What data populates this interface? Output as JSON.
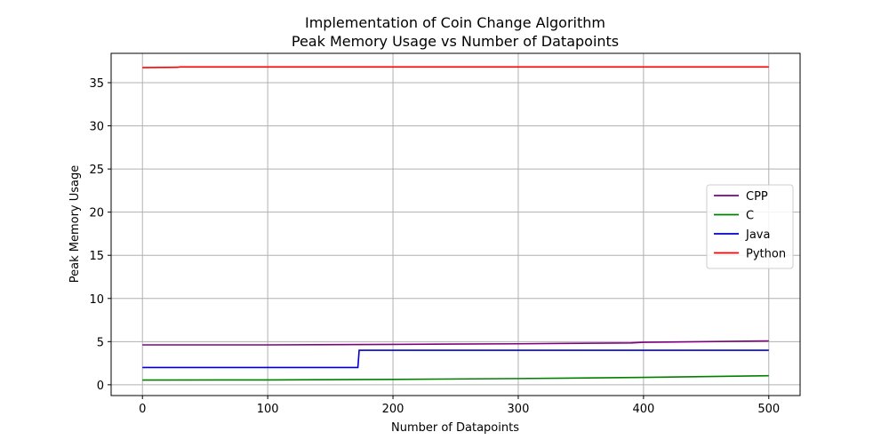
{
  "chart_data": {
    "type": "line",
    "title": "Implementation of Coin Change Algorithm",
    "subtitle": "Peak Memory Usage vs Number of Datapoints",
    "xlabel": "Number of Datapoints",
    "ylabel": "Peak Memory Usage",
    "xlim": [
      -25,
      525
    ],
    "ylim": [
      -1.25,
      38.4
    ],
    "xticks": [
      0,
      100,
      200,
      300,
      400,
      500
    ],
    "yticks": [
      0,
      5,
      10,
      15,
      20,
      25,
      30,
      35
    ],
    "grid": true,
    "legend_position": "center-right",
    "series": [
      {
        "name": "CPP",
        "color": "#800080",
        "points": [
          [
            0,
            4.62
          ],
          [
            100,
            4.62
          ],
          [
            200,
            4.68
          ],
          [
            300,
            4.75
          ],
          [
            390,
            4.85
          ],
          [
            400,
            4.92
          ],
          [
            500,
            5.08
          ]
        ]
      },
      {
        "name": "C",
        "color": "#008000",
        "points": [
          [
            0,
            0.55
          ],
          [
            100,
            0.56
          ],
          [
            200,
            0.62
          ],
          [
            300,
            0.72
          ],
          [
            400,
            0.85
          ],
          [
            500,
            1.05
          ]
        ]
      },
      {
        "name": "Java",
        "color": "#0000cc",
        "points": [
          [
            0,
            2.0
          ],
          [
            172,
            2.0
          ],
          [
            173,
            4.0
          ],
          [
            500,
            4.0
          ]
        ]
      },
      {
        "name": "Python",
        "color": "#ff0000",
        "points": [
          [
            0,
            36.75
          ],
          [
            28,
            36.78
          ],
          [
            30,
            36.82
          ],
          [
            500,
            36.82
          ]
        ]
      }
    ]
  }
}
